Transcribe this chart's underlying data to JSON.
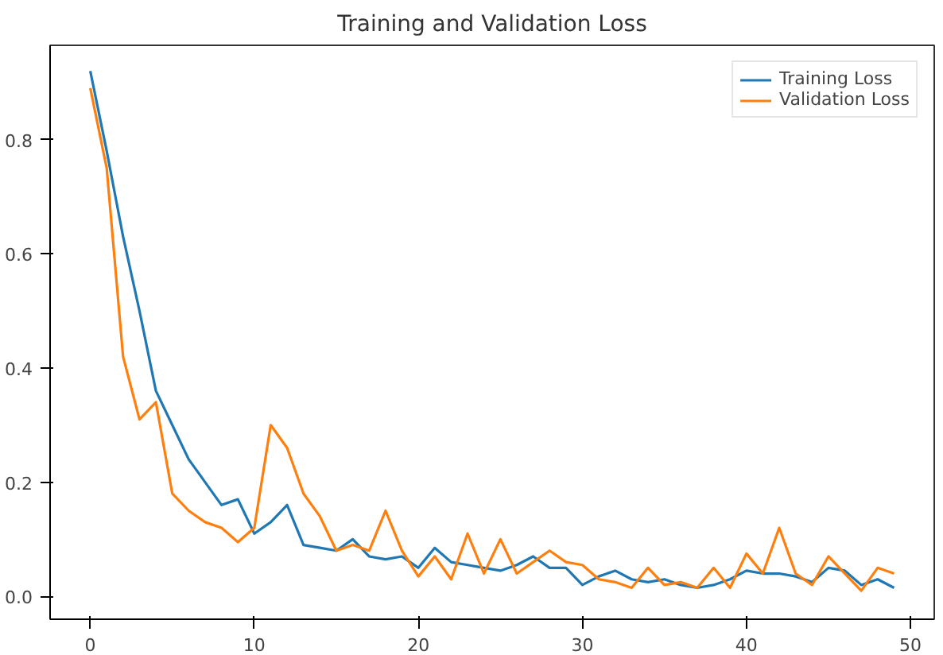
{
  "chart_data": {
    "type": "line",
    "title": "Training and Validation Loss",
    "x": [
      0,
      1,
      2,
      3,
      4,
      5,
      6,
      7,
      8,
      9,
      10,
      11,
      12,
      13,
      14,
      15,
      16,
      17,
      18,
      19,
      20,
      21,
      22,
      23,
      24,
      25,
      26,
      27,
      28,
      29,
      30,
      31,
      32,
      33,
      34,
      35,
      36,
      37,
      38,
      39,
      40,
      41,
      42,
      43,
      44,
      45,
      46,
      47,
      48,
      49
    ],
    "series": [
      {
        "name": "Training Loss",
        "color": "#1f77b4",
        "values": [
          0.92,
          0.78,
          0.63,
          0.5,
          0.36,
          0.3,
          0.24,
          0.2,
          0.16,
          0.17,
          0.11,
          0.13,
          0.16,
          0.09,
          0.085,
          0.08,
          0.1,
          0.07,
          0.065,
          0.07,
          0.05,
          0.085,
          0.06,
          0.055,
          0.05,
          0.045,
          0.055,
          0.07,
          0.05,
          0.05,
          0.02,
          0.035,
          0.045,
          0.03,
          0.025,
          0.03,
          0.02,
          0.015,
          0.02,
          0.03,
          0.045,
          0.04,
          0.04,
          0.035,
          0.025,
          0.05,
          0.045,
          0.02,
          0.03,
          0.015
        ]
      },
      {
        "name": "Validation Loss",
        "color": "#ff7f0e",
        "values": [
          0.89,
          0.75,
          0.42,
          0.31,
          0.34,
          0.18,
          0.15,
          0.13,
          0.12,
          0.095,
          0.12,
          0.3,
          0.26,
          0.18,
          0.14,
          0.08,
          0.09,
          0.08,
          0.15,
          0.08,
          0.035,
          0.07,
          0.03,
          0.11,
          0.04,
          0.1,
          0.04,
          0.06,
          0.08,
          0.06,
          0.055,
          0.03,
          0.025,
          0.015,
          0.05,
          0.02,
          0.025,
          0.015,
          0.05,
          0.015,
          0.075,
          0.04,
          0.12,
          0.04,
          0.02,
          0.07,
          0.04,
          0.01,
          0.05,
          0.04
        ]
      }
    ],
    "xlim": [
      -2.45,
      51.45
    ],
    "ylim": [
      -0.04,
      0.965
    ],
    "xticks": [
      0,
      10,
      20,
      30,
      40,
      50
    ],
    "yticks": [
      {
        "value": 0,
        "label": "0.0"
      },
      {
        "value": 0.2,
        "label": "0.2"
      },
      {
        "value": 0.4,
        "label": "0.4"
      },
      {
        "value": 0.6,
        "label": "0.6"
      },
      {
        "value": 0.8,
        "label": "0.8"
      }
    ],
    "legend": "top right",
    "grid": false
  }
}
